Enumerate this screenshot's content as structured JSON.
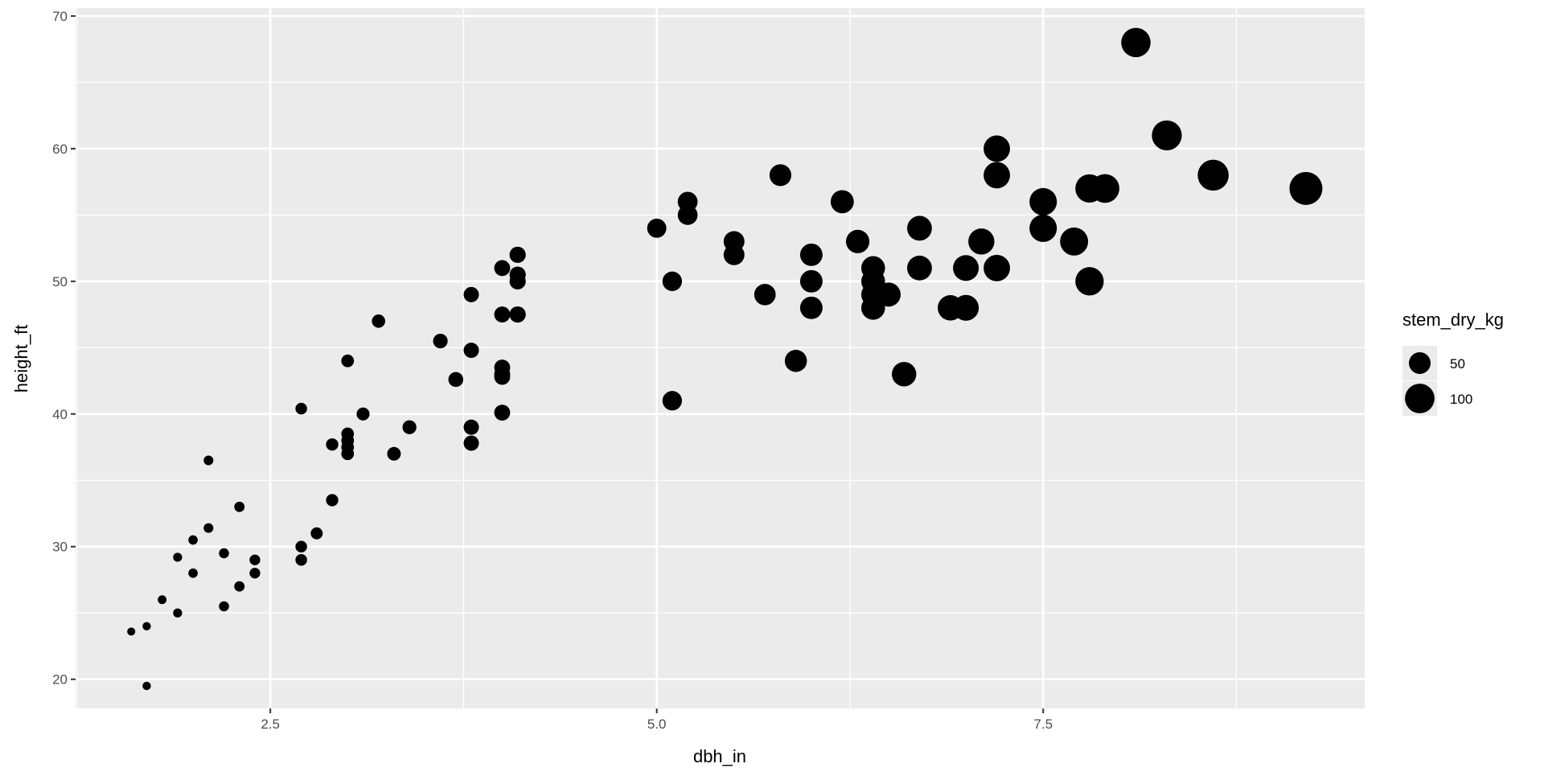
{
  "chart_data": {
    "type": "scatter",
    "title": "",
    "xlabel": "dbh_in",
    "ylabel": "height_ft",
    "xlim": [
      1.24,
      9.58
    ],
    "ylim": [
      17.8,
      70.6
    ],
    "x_ticks": [
      2.5,
      5.0,
      7.5
    ],
    "x_tick_labels": [
      "2.5",
      "5.0",
      "7.5"
    ],
    "y_ticks": [
      20,
      30,
      40,
      50,
      60,
      70
    ],
    "y_tick_labels": [
      "20",
      "30",
      "40",
      "50",
      "60",
      "70"
    ],
    "grid": true,
    "background": "#ebebeb",
    "point_color": "#000000",
    "legend": {
      "position": "right",
      "title": "stem_dry_kg",
      "entries": [
        {
          "value": 50,
          "label": "50"
        },
        {
          "value": 100,
          "label": "100"
        }
      ]
    },
    "size_variable": "stem_dry_kg",
    "point_fields": [
      "dbh_in",
      "height_ft",
      "stem_dry_kg"
    ],
    "points": [
      [
        1.6,
        23.6,
        3.8
      ],
      [
        1.7,
        24.0,
        4.3
      ],
      [
        1.7,
        19.5,
        4.3
      ],
      [
        1.8,
        26.0,
        4.9
      ],
      [
        1.9,
        29.2,
        5.4
      ],
      [
        1.9,
        25.0,
        5.4
      ],
      [
        2.0,
        30.5,
        6
      ],
      [
        2.0,
        28.0,
        6
      ],
      [
        2.1,
        36.5,
        6.6
      ],
      [
        2.1,
        31.4,
        6.6
      ],
      [
        2.2,
        29.5,
        7.3
      ],
      [
        2.2,
        25.5,
        7.3
      ],
      [
        2.3,
        33.0,
        7.9
      ],
      [
        2.3,
        27.0,
        7.9
      ],
      [
        2.4,
        29.0,
        8.6
      ],
      [
        2.4,
        28.0,
        8.6
      ],
      [
        2.7,
        40.4,
        10.9
      ],
      [
        2.7,
        30.0,
        10.9
      ],
      [
        2.7,
        29.0,
        10.9
      ],
      [
        2.8,
        31.0,
        11.8
      ],
      [
        2.9,
        37.7,
        12.6
      ],
      [
        2.9,
        33.5,
        12.6
      ],
      [
        3.0,
        44.0,
        13.5
      ],
      [
        3.0,
        38.5,
        13.5
      ],
      [
        3.0,
        38.0,
        13.5
      ],
      [
        3.0,
        37.5,
        13.5
      ],
      [
        3.0,
        37.0,
        13.5
      ],
      [
        3.1,
        40.0,
        14.4
      ],
      [
        3.2,
        47.0,
        15.4
      ],
      [
        3.3,
        37.0,
        16.3
      ],
      [
        3.4,
        39.0,
        17.3
      ],
      [
        3.6,
        45.5,
        19.4
      ],
      [
        3.7,
        42.6,
        20.5
      ],
      [
        3.8,
        49.0,
        21.7
      ],
      [
        3.8,
        44.8,
        21.7
      ],
      [
        3.8,
        39.0,
        21.7
      ],
      [
        3.8,
        37.8,
        21.7
      ],
      [
        4.0,
        51.0,
        24
      ],
      [
        4.0,
        47.5,
        24
      ],
      [
        4.0,
        43.5,
        24
      ],
      [
        4.0,
        43.0,
        24
      ],
      [
        4.0,
        42.8,
        24
      ],
      [
        4.0,
        40.1,
        24
      ],
      [
        4.1,
        52.0,
        25.2
      ],
      [
        4.1,
        50.5,
        25.2
      ],
      [
        4.1,
        50.0,
        25.2
      ],
      [
        4.1,
        47.5,
        25.2
      ],
      [
        5.0,
        54.0,
        37.5
      ],
      [
        5.1,
        50.0,
        39
      ],
      [
        5.1,
        41.0,
        39
      ],
      [
        5.2,
        56.0,
        40.6
      ],
      [
        5.2,
        55.0,
        40.6
      ],
      [
        5.5,
        53.0,
        45.4
      ],
      [
        5.5,
        52.0,
        45.4
      ],
      [
        5.7,
        49.0,
        48.7
      ],
      [
        5.8,
        58.0,
        50.5
      ],
      [
        5.9,
        44.0,
        52.2
      ],
      [
        6.0,
        52.0,
        54
      ],
      [
        6.0,
        50.0,
        54
      ],
      [
        6.0,
        48.0,
        54
      ],
      [
        6.2,
        56.0,
        57.7
      ],
      [
        6.3,
        53.0,
        59.5
      ],
      [
        6.4,
        51.0,
        61.4
      ],
      [
        6.4,
        50.0,
        61.4
      ],
      [
        6.4,
        49.0,
        61.4
      ],
      [
        6.4,
        48.0,
        61.4
      ],
      [
        6.5,
        49.0,
        63.4
      ],
      [
        6.6,
        43.0,
        65.3
      ],
      [
        6.7,
        54.0,
        67.3
      ],
      [
        6.7,
        51.0,
        67.3
      ],
      [
        6.9,
        48.0,
        71.4
      ],
      [
        7.0,
        51.0,
        73.5
      ],
      [
        7.0,
        48.0,
        73.5
      ],
      [
        7.1,
        53.0,
        75.6
      ],
      [
        7.2,
        60.0,
        77.8
      ],
      [
        7.2,
        58.0,
        77.8
      ],
      [
        7.2,
        51.0,
        77.8
      ],
      [
        7.5,
        56.0,
        84.4
      ],
      [
        7.5,
        54.0,
        84.4
      ],
      [
        7.7,
        53.0,
        89
      ],
      [
        7.8,
        57.0,
        91.3
      ],
      [
        7.8,
        50.0,
        91.3
      ],
      [
        7.9,
        57.0,
        93.6
      ],
      [
        8.1,
        68.0,
        98.4
      ],
      [
        8.3,
        61.0,
        103
      ],
      [
        8.6,
        58.0,
        111
      ],
      [
        9.2,
        57.0,
        127
      ]
    ]
  }
}
